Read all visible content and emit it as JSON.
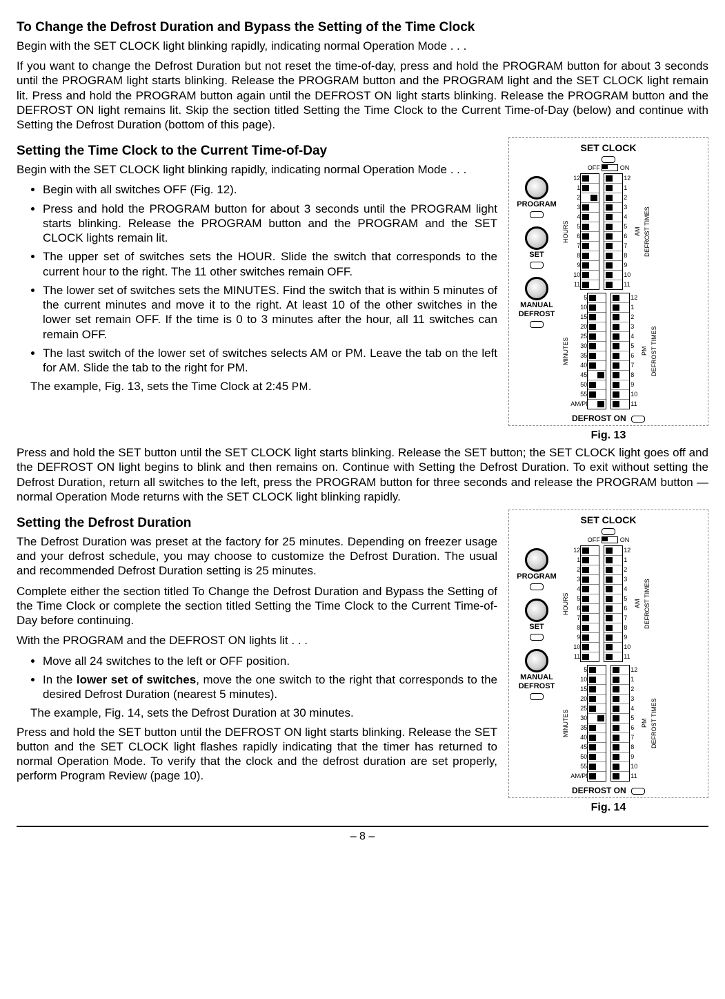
{
  "heading1": "To Change the Defrost Duration and Bypass the Setting of the Time Clock",
  "p1": "Begin with the SET CLOCK light blinking rapidly, indicating normal Operation Mode . . .",
  "p2": "If you want to change the Defrost Duration but not reset the time-of-day, press and hold the PROGRAM button for about 3 seconds until the PROGRAM light starts blinking.  Release the PROGRAM button and the PROGRAM light and the SET CLOCK light remain lit.  Press and hold the PROGRAM button again until the DEFROST ON light starts blinking.  Release the PROGRAM button and the DEFROST ON light remains lit.  Skip the section titled Setting the Time Clock to the Current Time-of-Day (below) and continue with Setting the Defrost Duration (bottom of this page).",
  "heading2": "Setting the Time Clock to the Current Time-of-Day",
  "p3": "Begin with the SET CLOCK light blinking rapidly, indicating normal Operation Mode . . .",
  "li1": "Begin with all switches OFF (Fig. 12).",
  "li2": "Press and hold the PROGRAM button for about 3 seconds until the PROGRAM light starts blinking.  Release the PROGRAM button and the PROGRAM and the SET CLOCK lights remain lit.",
  "li3": "The upper set of switches sets the HOUR.  Slide the switch that corresponds to the current hour to the right.  The 11 other switches remain OFF.",
  "li4": "The lower set of switches sets the MINUTES.   Find the switch that is within 5 minutes of the current minutes and move it to the right.  At least 10 of the other switches in the lower set remain OFF.  If the time is 0 to 3 minutes after the hour, all 11 switches can remain OFF.",
  "li5": "The last switch of the lower set of switches selects AM or PM.  Leave the tab on the left for AM.  Slide the tab to the right for PM.",
  "p4_a": "The example, Fig. 13, sets the Time Clock at 2:45 ",
  "p4_b": "PM",
  "p4_c": ".",
  "p5": "Press and hold the SET button until the SET CLOCK light starts blinking.  Release the SET button; the SET CLOCK light goes off and the DEFROST ON light begins to blink and then remains on.  Continue with Setting the Defrost Duration.  To exit without setting the Defrost Duration, return all switches to the left, press the PROGRAM button for three seconds and release the PROGRAM button — normal Operation Mode returns with the SET CLOCK light blinking rapidly.",
  "heading3": "Setting the Defrost Duration",
  "p6": "The Defrost Duration was preset at the factory for 25 minutes.  Depending on freezer usage and your defrost schedule, you may choose to customize the Defrost Duration.  The usual and recommended Defrost Duration setting is 25 minutes.",
  "p7": "Complete either the section titled To Change the Defrost Duration and Bypass the Setting of the Time Clock or complete the section titled Setting the Time Clock to the Current Time-of-Day before continuing.",
  "p8": "With the PROGRAM and the DEFROST ON lights lit  .  .  .",
  "li6": "Move all 24 switches to the left or OFF position.",
  "li7_a": "In the ",
  "li7_b": "lower set of switches",
  "li7_c": ", move the one switch to the right that corresponds to the desired Defrost Duration (nearest 5 minutes).",
  "p9": "The example, Fig. 14, sets the Defrost Duration at 30 minutes.",
  "p10": "Press and hold the SET button until the DEFROST ON light starts blinking.  Release the SET button and the SET CLOCK light flashes rapidly indicating that the timer has returned to normal Operation Mode.  To verify that the clock and the defrost duration are set properly, perform Program Review (page 10).",
  "panel": {
    "title": "SET CLOCK",
    "off": "OFF",
    "on": "ON",
    "btn1": "PROGRAM",
    "btn2": "SET",
    "btn3a": "MANUAL",
    "btn3b": "DEFROST",
    "hours_label": "HOURS",
    "minutes_label": "MINUTES",
    "defrost_times": "DEFROST TIMES",
    "am": "AM",
    "pm": "PM",
    "ampm": "AM/PM",
    "defrost_on": "DEFROST ON",
    "hours": [
      "12",
      "1",
      "2",
      "3",
      "4",
      "5",
      "6",
      "7",
      "8",
      "9",
      "10",
      "11"
    ],
    "minutes": [
      "5",
      "10",
      "15",
      "20",
      "25",
      "30",
      "35",
      "40",
      "45",
      "50",
      "55"
    ],
    "right_nums": [
      "12",
      "1",
      "2",
      "3",
      "4",
      "5",
      "6",
      "7",
      "8",
      "9",
      "10",
      "11"
    ]
  },
  "fig13": {
    "caption": "Fig. 13",
    "hours_on": [
      2
    ],
    "minutes_on": [
      8,
      11
    ],
    "right_am_on": [],
    "right_pm_on": []
  },
  "fig14": {
    "caption": "Fig. 14",
    "hours_on": [],
    "minutes_on": [
      5
    ],
    "right_am_on": [],
    "right_pm_on": []
  },
  "page_num": "– 8 –"
}
